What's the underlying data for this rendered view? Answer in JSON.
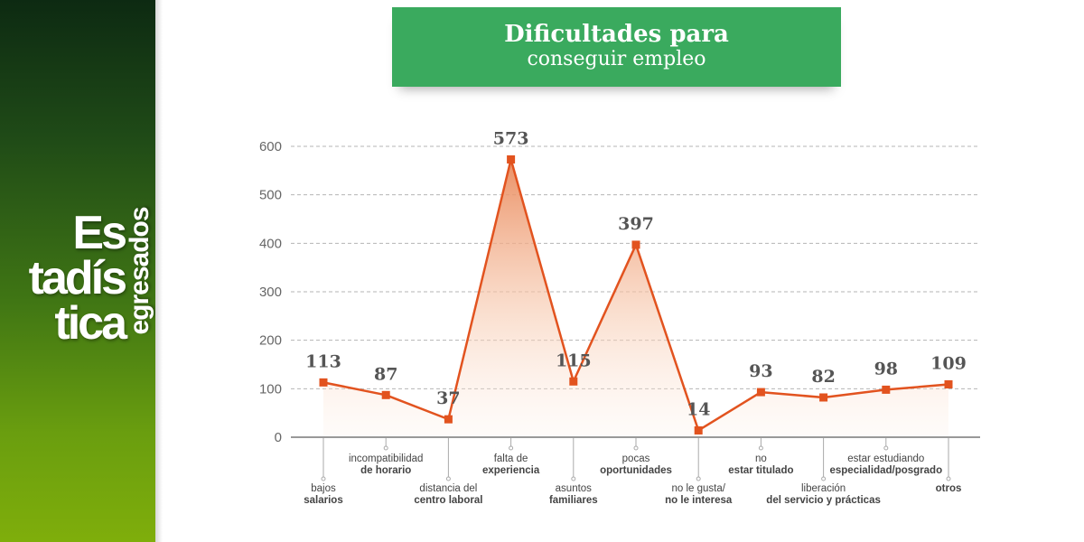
{
  "sidebar": {
    "line1": "Es",
    "line2": "tadís",
    "line3": "tica",
    "vertical": "egresados"
  },
  "title": {
    "line1": "Dificultades para",
    "line2": "conseguir empleo"
  },
  "colors": {
    "title_bg": "#3aaa5e",
    "series": "#e2531f",
    "sidebar_dark": "#0d2a12",
    "sidebar_light": "#7fae0b"
  },
  "chart_data": {
    "type": "line",
    "categories": [
      [
        "bajos",
        "salarios"
      ],
      [
        "incompatibilidad",
        "de horario"
      ],
      [
        "distancia del",
        "centro laboral"
      ],
      [
        "falta de",
        "experiencia"
      ],
      [
        "asuntos",
        "familiares"
      ],
      [
        "pocas",
        "oportunidades"
      ],
      [
        "no le gusta/",
        "no le interesa"
      ],
      [
        "no",
        "estar titulado"
      ],
      [
        "liberación",
        "del servicio y prácticas"
      ],
      [
        "estar estudiando",
        "especialidad/posgrado"
      ],
      [
        "otros"
      ]
    ],
    "values": [
      113,
      87,
      37,
      573,
      115,
      397,
      14,
      93,
      82,
      98,
      109
    ],
    "ylim": [
      0,
      600
    ],
    "yticks": [
      0,
      100,
      200,
      300,
      400,
      500,
      600
    ],
    "grid": true,
    "area_fill": true
  }
}
